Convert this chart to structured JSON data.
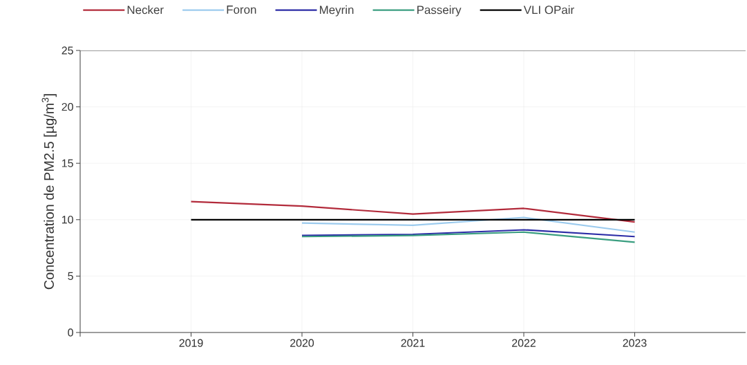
{
  "chart_data": {
    "type": "line",
    "ylabel": "Concentration de PM2.5 [µg/m$^{3}$]",
    "x": [
      2019,
      2020,
      2021,
      2022,
      2023
    ],
    "series": [
      {
        "name": "Necker",
        "color": "#b22a3a",
        "values": [
          11.6,
          11.2,
          10.5,
          11.0,
          9.8
        ]
      },
      {
        "name": "Foron",
        "color": "#9ccbee",
        "values": [
          null,
          9.7,
          9.5,
          10.2,
          8.9
        ]
      },
      {
        "name": "Meyrin",
        "color": "#2b2ba6",
        "values": [
          null,
          8.6,
          8.7,
          9.1,
          8.5
        ]
      },
      {
        "name": "Passeiry",
        "color": "#3a9e80",
        "values": [
          null,
          8.5,
          8.6,
          8.9,
          8.0
        ]
      },
      {
        "name": "VLI OPair",
        "color": "#000000",
        "values": [
          10,
          10,
          10,
          10,
          10
        ]
      }
    ],
    "xlim": [
      2018,
      2024
    ],
    "xticks": [
      {
        "value": 2018,
        "label": null
      },
      2019,
      2020,
      2021,
      2022,
      2023
    ],
    "ylim": [
      0,
      25
    ],
    "yticks": [
      0,
      5,
      10,
      15,
      20,
      25
    ],
    "grid": true,
    "legend": "top",
    "marker": "none",
    "line_style": "solid"
  }
}
